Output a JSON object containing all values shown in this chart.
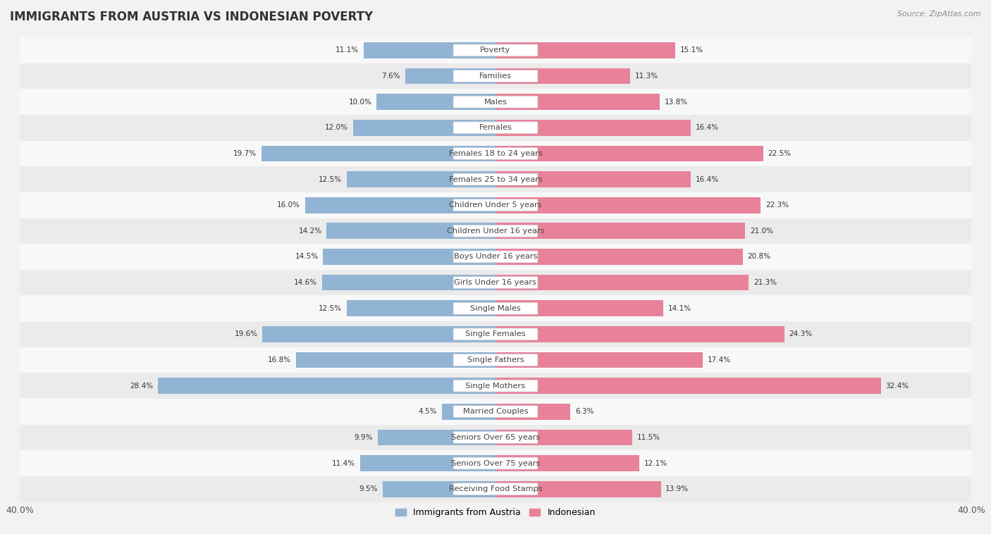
{
  "title": "IMMIGRANTS FROM AUSTRIA VS INDONESIAN POVERTY",
  "source": "Source: ZipAtlas.com",
  "categories": [
    "Poverty",
    "Families",
    "Males",
    "Females",
    "Females 18 to 24 years",
    "Females 25 to 34 years",
    "Children Under 5 years",
    "Children Under 16 years",
    "Boys Under 16 years",
    "Girls Under 16 years",
    "Single Males",
    "Single Females",
    "Single Fathers",
    "Single Mothers",
    "Married Couples",
    "Seniors Over 65 years",
    "Seniors Over 75 years",
    "Receiving Food Stamps"
  ],
  "austria_values": [
    11.1,
    7.6,
    10.0,
    12.0,
    19.7,
    12.5,
    16.0,
    14.2,
    14.5,
    14.6,
    12.5,
    19.6,
    16.8,
    28.4,
    4.5,
    9.9,
    11.4,
    9.5
  ],
  "indonesian_values": [
    15.1,
    11.3,
    13.8,
    16.4,
    22.5,
    16.4,
    22.3,
    21.0,
    20.8,
    21.3,
    14.1,
    24.3,
    17.4,
    32.4,
    6.3,
    11.5,
    12.1,
    13.9
  ],
  "austria_color": "#92b4d4",
  "indonesian_color": "#e8829a",
  "xlim": 40.0,
  "bar_height": 0.62,
  "background_color": "#f2f2f2",
  "row_color_light": "#f8f8f8",
  "row_color_dark": "#ebebeb",
  "label_fontsize": 8.2,
  "title_fontsize": 12,
  "legend_fontsize": 9,
  "value_fontsize": 7.5
}
